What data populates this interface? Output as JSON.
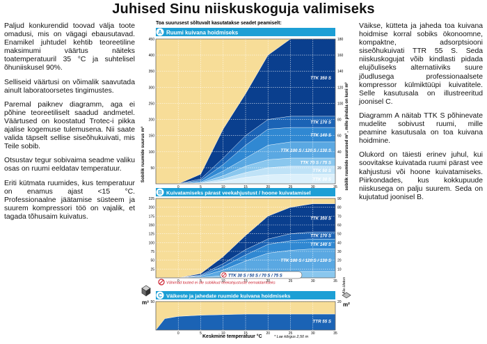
{
  "page_title": "Juhised Sinu niiskuskoguja valimiseks",
  "left_paragraphs": [
    "Paljud konkurendid toovad välja toote omadusi, mis on vägagi ebausutavad. Enamikel juhtudel kehtib teoreetiline maksimumi väärtus näiteks toatemperatuuril 35 °C ja suhtelisel õhuniiskusel 90%.",
    "Selliseid väärtusi on võimalik saavutada ainult laboratoorsetes tingimustes.",
    "Paremal paiknev diagramm, aga ei põhine teoreetiliselt saadud andmetel. Väärtused on koostatud Trotec-i pikka ajalise kogemuse tulemusena. Nii saate valida täpselt sellise siseõhukuivati, mis Teile sobib.",
    "Otsustav tegur sobivaima seadme valiku osas on ruumi eeldatav temperatuur.",
    "Eriti kütmata ruumides, kus temperatuur on enamus ajast <15 °C. Professionaalne jäätamise süsteem ja suurem kompressori töö on vajalik, et tagada tõhusaim kuivatus."
  ],
  "right_paragraphs": [
    "Väikse, kütteta ja jaheda toa kuivana hoidmise korral sobiks ökonoomne, kompaktne, adsorptsiooni siseõhukuivati TTR 55 S. Seda niiskuskogujat võib kindlasti pidada elujõuliseks alternatiiviks suure jõudlusega professionaalsete kompressor külmiktüüpi kuivatitele. Selle kasutusala on illustreeritud joonisel C.",
    "Diagramm A näitab TTK S põhinevate mudelite sobivust ruumi, mille peamine kasutusala on toa kuivana hoidmine.",
    "Olukord on täiesti erinev juhul, kui soovitakse kuivatada ruumi pärast vee kahjustusi või hoone kuivatamiseks. Piirkondades, kus kokkupuude niiskusega on palju suurem. Seda on kujutatud joonisel B."
  ],
  "chart_header": "Toa suurusest sõltuvalt kasutatakse seadet peamiselt:",
  "y_axis_left_label": "Sobilik ruumide suurus m³",
  "y_axis_right_label": "sobilik ruumide suurused m³ , mille pindala on kuni m²",
  "x_axis_label": "Keskmine temperatuur °C",
  "m3_label": "m³",
  "footnote_approx": "Ala ülatus",
  "footnote_height": "* Lae kõrgus 2,50 m",
  "colors": {
    "panel_bg": "#f7dd98",
    "header_band": "#1d9fd5",
    "grid": "#ffffff",
    "shade1": "#0a3f8e",
    "shade2": "#1b63b5",
    "shade3": "#3088d2",
    "shade4": "#5aa8e2",
    "shade5": "#8ac7ee",
    "shade6": "#bfe2f7",
    "warning": "#cc1f2d",
    "ttr": "#1b63b5"
  },
  "chart_data": [
    {
      "id": "A",
      "type": "area",
      "title": "Ruumi kuivana hoidmiseks",
      "x": [
        -5,
        0,
        5,
        10,
        15,
        20,
        25,
        30,
        35
      ],
      "x_ticks": [
        0,
        5,
        10,
        15,
        20,
        25,
        30,
        35
      ],
      "ylim": [
        0,
        450
      ],
      "y_ticks": [
        50,
        100,
        150,
        200,
        250,
        300,
        350,
        400,
        450
      ],
      "y2lim": [
        0,
        180
      ],
      "y2_ticks": [
        20,
        40,
        60,
        80,
        100,
        120,
        140,
        160,
        180
      ],
      "series": [
        {
          "name": "TTK 350 S",
          "values": [
            0,
            0,
            30,
            170,
            280,
            400,
            450,
            450,
            450
          ]
        },
        {
          "name": "TTK 170 S",
          "values": [
            0,
            0,
            15,
            80,
            150,
            200,
            210,
            210,
            210
          ]
        },
        {
          "name": "TTK 140 S",
          "values": [
            0,
            0,
            10,
            60,
            120,
            170,
            175,
            175,
            175
          ]
        },
        {
          "name": "TTK 100 S / 120 S / 130 S",
          "values": [
            0,
            0,
            5,
            40,
            80,
            120,
            130,
            130,
            130
          ]
        },
        {
          "name": "TTK 70 S / 75 S",
          "values": [
            0,
            0,
            3,
            25,
            55,
            75,
            80,
            80,
            80
          ]
        },
        {
          "name": "TTK 50 S",
          "values": [
            0,
            0,
            2,
            15,
            35,
            50,
            55,
            55,
            55
          ]
        },
        {
          "name": "TTK 30 S",
          "values": [
            0,
            0,
            1,
            8,
            20,
            28,
            30,
            30,
            30
          ]
        }
      ]
    },
    {
      "id": "B",
      "type": "area",
      "title": "Kuivatamiseks pärast veekahjustust / hoone kuivatamisel",
      "x": [
        -5,
        0,
        5,
        10,
        15,
        20,
        25,
        30,
        35
      ],
      "x_ticks": [
        0,
        5,
        10,
        15,
        20,
        25,
        30,
        35
      ],
      "ylim": [
        0,
        225
      ],
      "y_ticks": [
        25,
        50,
        75,
        100,
        125,
        150,
        175,
        200,
        225
      ],
      "y2lim": [
        0,
        90
      ],
      "y2_ticks": [
        10,
        20,
        30,
        40,
        50,
        60,
        70,
        80,
        90
      ],
      "series": [
        {
          "name": "TTK 350 S",
          "values": [
            0,
            0,
            12,
            60,
            120,
            175,
            200,
            210,
            210
          ]
        },
        {
          "name": "TTK 170 S",
          "values": [
            0,
            0,
            8,
            40,
            80,
            110,
            125,
            130,
            130
          ]
        },
        {
          "name": "TTK 140 S",
          "values": [
            0,
            0,
            6,
            32,
            65,
            95,
            105,
            110,
            110
          ]
        },
        {
          "name": "TTK 100 S / 120 S / 130 S",
          "values": [
            0,
            0,
            4,
            22,
            48,
            70,
            78,
            82,
            82
          ]
        },
        {
          "name": "TTK 30 S / 50 S / 70 S / 75 S",
          "values": [
            0,
            0,
            1,
            6,
            12,
            16,
            18,
            18,
            18
          ]
        }
      ],
      "warning": "Vähimad tooted ei ole sobilikud veekahjustuste eemaldamiseks"
    },
    {
      "id": "C",
      "type": "area",
      "title": "Väikeste ja jahedate ruumide kuivana hoidmiseks",
      "x": [
        -5,
        -3,
        0,
        5,
        10,
        15,
        20,
        25,
        30,
        35
      ],
      "x_ticks": [
        0,
        5,
        10,
        15,
        20,
        25,
        30,
        35
      ],
      "ylim": [
        0,
        50
      ],
      "y_ticks": [
        50
      ],
      "y2lim": [
        0,
        20
      ],
      "y2_ticks": [
        20
      ],
      "series": [
        {
          "name": "TTR 55 S",
          "values": [
            0,
            20,
            24,
            26,
            27,
            28,
            28,
            28,
            28,
            28
          ]
        }
      ]
    }
  ]
}
